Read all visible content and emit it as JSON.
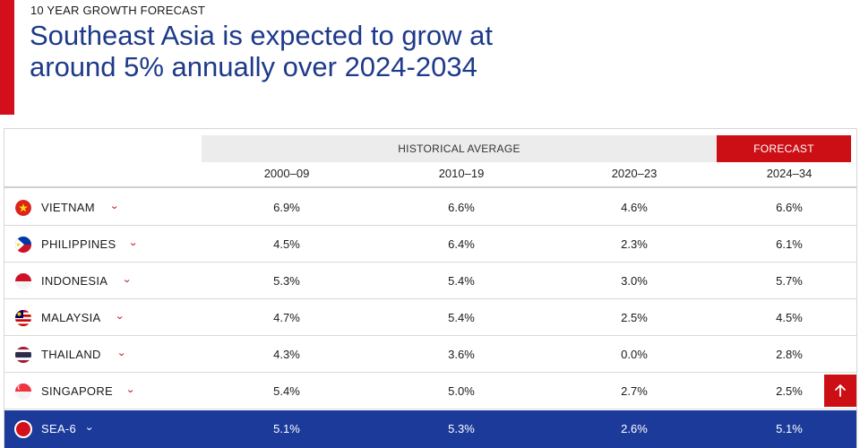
{
  "header": {
    "eyebrow": "10 YEAR GROWTH FORECAST",
    "headline": "Southeast Asia is expected to grow at around 5% annually over 2024-2034"
  },
  "table": {
    "group_historical": "HISTORICAL AVERAGE",
    "group_forecast": "FORECAST",
    "columns": [
      "2000–09",
      "2010–19",
      "2020–23",
      "2024–34"
    ],
    "rows": [
      {
        "country": "VIETNAM",
        "values": [
          "6.9%",
          "6.6%",
          "4.6%",
          "6.6%"
        ]
      },
      {
        "country": "PHILIPPINES",
        "values": [
          "4.5%",
          "6.4%",
          "2.3%",
          "6.1%"
        ]
      },
      {
        "country": "INDONESIA",
        "values": [
          "5.3%",
          "5.4%",
          "3.0%",
          "5.7%"
        ]
      },
      {
        "country": "MALAYSIA",
        "values": [
          "4.7%",
          "5.4%",
          "2.5%",
          "4.5%"
        ]
      },
      {
        "country": "THAILAND",
        "values": [
          "4.3%",
          "3.6%",
          "0.0%",
          "2.8%"
        ]
      },
      {
        "country": "SINGAPORE",
        "values": [
          "5.4%",
          "5.0%",
          "2.7%",
          "2.5%"
        ]
      }
    ],
    "total": {
      "country": "SEA-6",
      "values": [
        "5.1%",
        "5.3%",
        "2.6%",
        "5.1%"
      ]
    }
  },
  "colors": {
    "accent_red": "#d30f1b",
    "headline_blue": "#1d3a8a",
    "total_row_blue": "#1b3a9a"
  },
  "icons": {
    "expand": "chevron-down-icon",
    "scroll_top": "arrow-up-icon"
  }
}
